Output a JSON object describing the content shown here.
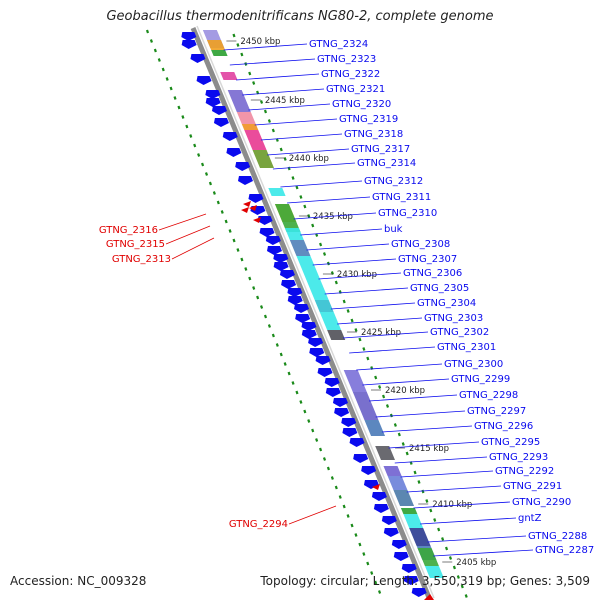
{
  "title": "Geobacillus thermodenitrificans NG80-2, complete genome",
  "accession_label": "Accession: NC_009328",
  "summary_label": "Topology: circular; Length: 3,550,319 bp; Genes: 3,509",
  "colors": {
    "forward": "#0a0aee",
    "reverse": "#e00000",
    "backbone": "#8c8c8c",
    "tick": "#1a8a1a"
  },
  "kbp_labels": [
    "2450 kbp",
    "2445 kbp",
    "2440 kbp",
    "2435 kbp",
    "2430 kbp",
    "2425 kbp",
    "2420 kbp",
    "2415 kbp",
    "2410 kbp",
    "2405 kbp"
  ],
  "forward_genes": [
    "GTNG_2324",
    "GTNG_2323",
    "GTNG_2322",
    "GTNG_2321",
    "GTNG_2320",
    "GTNG_2319",
    "GTNG_2318",
    "GTNG_2317",
    "GTNG_2314",
    "GTNG_2312",
    "GTNG_2311",
    "GTNG_2310",
    "buk",
    "GTNG_2308",
    "GTNG_2307",
    "GTNG_2306",
    "GTNG_2305",
    "GTNG_2304",
    "GTNG_2303",
    "GTNG_2302",
    "GTNG_2301",
    "GTNG_2300",
    "GTNG_2299",
    "GTNG_2298",
    "GTNG_2297",
    "GTNG_2296",
    "GTNG_2295",
    "GTNG_2293",
    "GTNG_2292",
    "GTNG_2291",
    "GTNG_2290",
    "gntZ",
    "GTNG_2288",
    "GTNG_2287"
  ],
  "reverse_genes": [
    "GTNG_2316",
    "GTNG_2315",
    "GTNG_2313",
    "GTNG_2294"
  ]
}
